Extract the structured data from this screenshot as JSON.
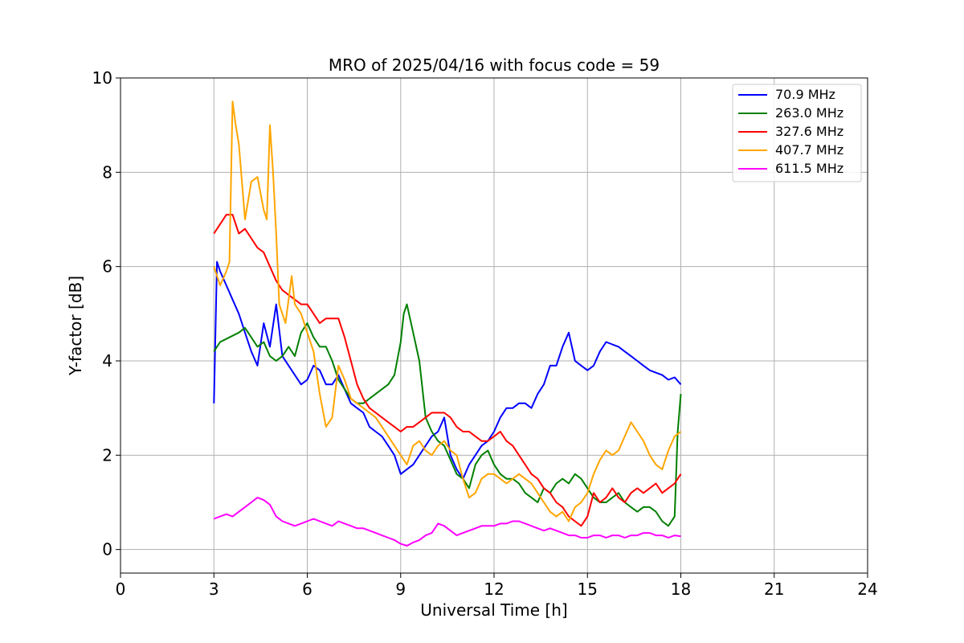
{
  "chart_data": {
    "type": "line",
    "title": "MRO of 2025/04/16 with focus code = 59",
    "xlabel": "Universal Time [h]",
    "ylabel": "Y-factor [dB]",
    "xlim": [
      0,
      24
    ],
    "ylim": [
      -0.5,
      10
    ],
    "xticks": [
      0,
      3,
      6,
      9,
      12,
      15,
      18,
      21,
      24
    ],
    "yticks": [
      0,
      2,
      4,
      6,
      8,
      10
    ],
    "grid": true,
    "legend_position": "top-right",
    "series": [
      {
        "name": " 70.9 MHz",
        "color": "#0000ff",
        "x": [
          3.0,
          3.1,
          3.2,
          3.4,
          3.6,
          3.8,
          4.0,
          4.2,
          4.4,
          4.6,
          4.8,
          5.0,
          5.2,
          5.4,
          5.6,
          5.8,
          6.0,
          6.2,
          6.4,
          6.6,
          6.8,
          7.0,
          7.2,
          7.4,
          7.6,
          7.8,
          8.0,
          8.2,
          8.4,
          8.6,
          8.8,
          9.0,
          9.2,
          9.4,
          9.6,
          9.8,
          10.0,
          10.2,
          10.4,
          10.6,
          10.8,
          11.0,
          11.2,
          11.4,
          11.6,
          11.8,
          12.0,
          12.2,
          12.4,
          12.6,
          12.8,
          13.0,
          13.2,
          13.4,
          13.6,
          13.8,
          14.0,
          14.2,
          14.4,
          14.6,
          14.8,
          15.0,
          15.2,
          15.4,
          15.6,
          15.8,
          16.0,
          16.2,
          16.4,
          16.6,
          16.8,
          17.0,
          17.2,
          17.4,
          17.6,
          17.8,
          18.0
        ],
        "y": [
          3.1,
          6.1,
          5.9,
          5.6,
          5.3,
          5.0,
          4.6,
          4.2,
          3.9,
          4.8,
          4.3,
          5.2,
          4.1,
          3.9,
          3.7,
          3.5,
          3.6,
          3.9,
          3.8,
          3.5,
          3.5,
          3.7,
          3.4,
          3.1,
          3.0,
          2.9,
          2.6,
          2.5,
          2.4,
          2.2,
          2.0,
          1.6,
          1.7,
          1.8,
          2.0,
          2.2,
          2.4,
          2.5,
          2.8,
          2.0,
          1.7,
          1.5,
          1.8,
          2.0,
          2.2,
          2.3,
          2.5,
          2.8,
          3.0,
          3.0,
          3.1,
          3.1,
          3.0,
          3.3,
          3.5,
          3.9,
          3.9,
          4.3,
          4.6,
          4.0,
          3.9,
          3.8,
          3.9,
          4.2,
          4.4,
          4.35,
          4.3,
          4.2,
          4.1,
          4.0,
          3.9,
          3.8,
          3.75,
          3.7,
          3.6,
          3.65,
          3.5
        ]
      },
      {
        "name": "263.0 MHz",
        "color": "#008000",
        "x": [
          3.0,
          3.2,
          3.5,
          3.8,
          4.0,
          4.2,
          4.4,
          4.6,
          4.8,
          5.0,
          5.2,
          5.4,
          5.6,
          5.8,
          6.0,
          6.2,
          6.4,
          6.6,
          6.8,
          7.0,
          7.2,
          7.4,
          7.6,
          7.8,
          8.0,
          8.2,
          8.4,
          8.6,
          8.8,
          9.0,
          9.1,
          9.2,
          9.4,
          9.6,
          9.8,
          10.0,
          10.2,
          10.4,
          10.6,
          10.8,
          11.0,
          11.2,
          11.4,
          11.6,
          11.8,
          12.0,
          12.2,
          12.4,
          12.6,
          12.8,
          13.0,
          13.2,
          13.4,
          13.6,
          13.8,
          14.0,
          14.2,
          14.4,
          14.6,
          14.8,
          15.0,
          15.2,
          15.4,
          15.6,
          15.8,
          16.0,
          16.2,
          16.4,
          16.6,
          16.8,
          17.0,
          17.2,
          17.4,
          17.6,
          17.8,
          17.9,
          18.0
        ],
        "y": [
          4.2,
          4.4,
          4.5,
          4.6,
          4.7,
          4.5,
          4.3,
          4.4,
          4.1,
          4.0,
          4.1,
          4.3,
          4.1,
          4.6,
          4.8,
          4.5,
          4.3,
          4.3,
          4.0,
          3.6,
          3.4,
          3.2,
          3.1,
          3.1,
          3.2,
          3.3,
          3.4,
          3.5,
          3.7,
          4.4,
          5.0,
          5.2,
          4.6,
          4.0,
          2.8,
          2.5,
          2.3,
          2.2,
          1.9,
          1.6,
          1.5,
          1.3,
          1.8,
          2.0,
          2.1,
          1.8,
          1.6,
          1.5,
          1.5,
          1.4,
          1.2,
          1.1,
          1.0,
          1.3,
          1.2,
          1.4,
          1.5,
          1.4,
          1.6,
          1.5,
          1.3,
          1.1,
          1.0,
          1.0,
          1.1,
          1.2,
          1.0,
          0.9,
          0.8,
          0.9,
          0.9,
          0.8,
          0.6,
          0.5,
          0.7,
          2.5,
          3.3
        ]
      },
      {
        "name": "327.6 MHz",
        "color": "#ff0000",
        "x": [
          3.0,
          3.2,
          3.4,
          3.6,
          3.8,
          4.0,
          4.2,
          4.4,
          4.6,
          4.8,
          5.0,
          5.2,
          5.4,
          5.6,
          5.8,
          6.0,
          6.2,
          6.4,
          6.6,
          6.8,
          7.0,
          7.2,
          7.4,
          7.6,
          7.8,
          8.0,
          8.2,
          8.4,
          8.6,
          8.8,
          9.0,
          9.2,
          9.4,
          9.6,
          9.8,
          10.0,
          10.2,
          10.4,
          10.6,
          10.8,
          11.0,
          11.2,
          11.4,
          11.6,
          11.8,
          12.0,
          12.2,
          12.4,
          12.6,
          12.8,
          13.0,
          13.2,
          13.4,
          13.6,
          13.8,
          14.0,
          14.2,
          14.4,
          14.6,
          14.8,
          15.0,
          15.2,
          15.4,
          15.6,
          15.8,
          16.0,
          16.2,
          16.4,
          16.6,
          16.8,
          17.0,
          17.2,
          17.4,
          17.6,
          17.8,
          18.0
        ],
        "y": [
          6.7,
          6.9,
          7.1,
          7.1,
          6.7,
          6.8,
          6.6,
          6.4,
          6.3,
          6.0,
          5.7,
          5.5,
          5.4,
          5.3,
          5.2,
          5.2,
          5.0,
          4.8,
          4.9,
          4.9,
          4.9,
          4.5,
          4.0,
          3.5,
          3.2,
          3.0,
          2.9,
          2.8,
          2.7,
          2.6,
          2.5,
          2.6,
          2.6,
          2.7,
          2.8,
          2.9,
          2.9,
          2.9,
          2.8,
          2.6,
          2.5,
          2.5,
          2.4,
          2.3,
          2.3,
          2.4,
          2.5,
          2.3,
          2.2,
          2.0,
          1.8,
          1.6,
          1.5,
          1.3,
          1.2,
          1.0,
          0.9,
          0.7,
          0.6,
          0.5,
          0.7,
          1.2,
          1.0,
          1.1,
          1.3,
          1.1,
          1.0,
          1.2,
          1.3,
          1.2,
          1.3,
          1.4,
          1.2,
          1.3,
          1.4,
          1.6
        ]
      },
      {
        "name": "407.7 MHz",
        "color": "#ffa500",
        "x": [
          3.0,
          3.2,
          3.4,
          3.5,
          3.6,
          3.7,
          3.8,
          4.0,
          4.2,
          4.4,
          4.6,
          4.7,
          4.8,
          4.9,
          5.0,
          5.1,
          5.3,
          5.5,
          5.6,
          5.8,
          6.0,
          6.2,
          6.4,
          6.6,
          6.8,
          7.0,
          7.2,
          7.4,
          7.6,
          7.8,
          8.0,
          8.2,
          8.4,
          8.6,
          8.8,
          9.0,
          9.2,
          9.4,
          9.6,
          9.8,
          10.0,
          10.2,
          10.4,
          10.6,
          10.8,
          11.0,
          11.2,
          11.4,
          11.6,
          11.8,
          12.0,
          12.2,
          12.4,
          12.6,
          12.8,
          13.0,
          13.2,
          13.4,
          13.6,
          13.8,
          14.0,
          14.2,
          14.4,
          14.6,
          14.8,
          15.0,
          15.2,
          15.4,
          15.6,
          15.8,
          16.0,
          16.2,
          16.4,
          16.6,
          16.8,
          17.0,
          17.2,
          17.4,
          17.6,
          17.8,
          18.0
        ],
        "y": [
          6.0,
          5.6,
          5.9,
          6.1,
          9.5,
          9.0,
          8.6,
          7.0,
          7.8,
          7.9,
          7.2,
          7.0,
          9.0,
          8.0,
          6.7,
          5.2,
          4.8,
          5.8,
          5.2,
          5.0,
          4.6,
          4.2,
          3.3,
          2.6,
          2.8,
          3.9,
          3.6,
          3.2,
          3.1,
          3.0,
          2.9,
          2.8,
          2.6,
          2.4,
          2.2,
          2.0,
          1.8,
          2.2,
          2.3,
          2.1,
          2.0,
          2.2,
          2.3,
          2.1,
          2.0,
          1.5,
          1.1,
          1.2,
          1.5,
          1.6,
          1.6,
          1.5,
          1.4,
          1.5,
          1.6,
          1.5,
          1.4,
          1.2,
          1.0,
          0.8,
          0.7,
          0.8,
          0.6,
          0.9,
          1.0,
          1.2,
          1.6,
          1.9,
          2.1,
          2.0,
          2.1,
          2.4,
          2.7,
          2.5,
          2.3,
          2.0,
          1.8,
          1.7,
          2.1,
          2.4,
          2.5
        ]
      },
      {
        "name": "611.5 MHz",
        "color": "#ff00ff",
        "x": [
          3.0,
          3.2,
          3.4,
          3.6,
          3.8,
          4.0,
          4.2,
          4.4,
          4.6,
          4.8,
          5.0,
          5.2,
          5.4,
          5.6,
          5.8,
          6.0,
          6.2,
          6.4,
          6.6,
          6.8,
          7.0,
          7.2,
          7.4,
          7.6,
          7.8,
          8.0,
          8.2,
          8.4,
          8.6,
          8.8,
          9.0,
          9.2,
          9.4,
          9.6,
          9.8,
          10.0,
          10.2,
          10.4,
          10.6,
          10.8,
          11.0,
          11.2,
          11.4,
          11.6,
          11.8,
          12.0,
          12.2,
          12.4,
          12.6,
          12.8,
          13.0,
          13.2,
          13.4,
          13.6,
          13.8,
          14.0,
          14.2,
          14.4,
          14.6,
          14.8,
          15.0,
          15.2,
          15.4,
          15.6,
          15.8,
          16.0,
          16.2,
          16.4,
          16.6,
          16.8,
          17.0,
          17.2,
          17.4,
          17.6,
          17.8,
          18.0
        ],
        "y": [
          0.65,
          0.7,
          0.75,
          0.7,
          0.8,
          0.9,
          1.0,
          1.1,
          1.05,
          0.95,
          0.7,
          0.6,
          0.55,
          0.5,
          0.55,
          0.6,
          0.65,
          0.6,
          0.55,
          0.5,
          0.6,
          0.55,
          0.5,
          0.45,
          0.45,
          0.4,
          0.35,
          0.3,
          0.25,
          0.2,
          0.12,
          0.08,
          0.15,
          0.2,
          0.3,
          0.35,
          0.55,
          0.5,
          0.4,
          0.3,
          0.35,
          0.4,
          0.45,
          0.5,
          0.5,
          0.5,
          0.55,
          0.55,
          0.6,
          0.6,
          0.55,
          0.5,
          0.45,
          0.4,
          0.45,
          0.4,
          0.35,
          0.3,
          0.3,
          0.25,
          0.25,
          0.3,
          0.3,
          0.25,
          0.3,
          0.3,
          0.25,
          0.3,
          0.3,
          0.35,
          0.35,
          0.3,
          0.3,
          0.25,
          0.3,
          0.28
        ]
      }
    ]
  }
}
